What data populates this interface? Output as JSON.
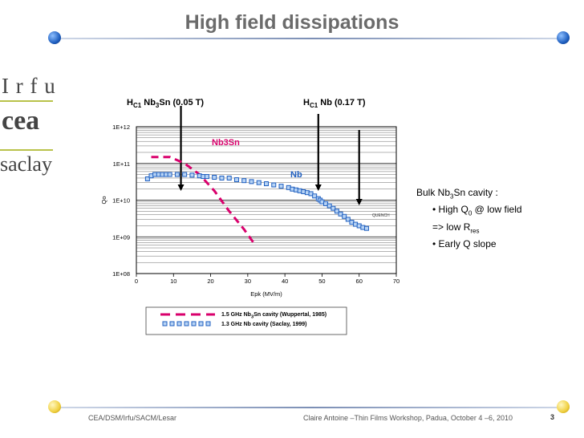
{
  "slide": {
    "title": "High field dissipations",
    "page_number": "3",
    "footer_left": "CEA/DSM/Irfu/SACM/Lesar",
    "footer_center": "Claire Antoine –Thin Films Workshop, Padua, October 4 –6, 2010"
  },
  "logos": {
    "irfu": "I r f u",
    "cea": "cea",
    "saclay": "saclay"
  },
  "annotations": {
    "hc1_nb3sn_label": "H",
    "hc1_nb3sn_sub": "C1",
    "hc1_nb3sn_text": "Nb",
    "hc1_nb3sn_sub2": "3",
    "hc1_nb3sn_rest": "Sn (0.05 T)",
    "hc1_nb_label": "H",
    "hc1_nb_sub": "C1",
    "hc1_nb_rest": "Nb (0.17 T)"
  },
  "bulk_note": {
    "heading_pre": "Bulk Nb",
    "heading_sub": "3",
    "heading_post": "Sn cavity :",
    "line1_pre": "• High Q",
    "line1_sub": "0",
    "line1_post": " @ low field",
    "line2_pre": "=> low R",
    "line2_sub": "res",
    "line3": "•  Early Q slope"
  },
  "colors": {
    "nb3sn": "#d9006c",
    "nb": "#1f5fc0",
    "title": "#6b6b6b"
  },
  "chart_data": {
    "type": "scatter",
    "title": "",
    "xlabel": "Epk (MV/m)",
    "ylabel": "Qo",
    "xlim": [
      0,
      70
    ],
    "ylim_log10": [
      8,
      12
    ],
    "x_ticks": [
      0,
      10,
      20,
      30,
      40,
      50,
      60,
      70
    ],
    "y_tick_labels": [
      "1E+08",
      "1E+09",
      "1E+10",
      "1E+11",
      "1E+12"
    ],
    "in_plot_labels": {
      "nb3sn": "Nb3Sn",
      "nb": "Nb",
      "quench": "QUENCH"
    },
    "legend": [
      {
        "name_pre": "1.5 GHz Nb",
        "name_sub": "3",
        "name_post": "Sn cavity (Wuppertal, 1985)",
        "style": "dashed",
        "color": "#d9006c"
      },
      {
        "name_pre": "1.3 GHz Nb cavity (Saclay, 1999)",
        "name_sub": "",
        "name_post": "",
        "style": "markers",
        "color": "#1f5fc0"
      }
    ],
    "hc1_lines": [
      {
        "name": "HC1 Nb3Sn",
        "epk": 12
      },
      {
        "name": "HC1 Nb",
        "epk": 49
      },
      {
        "name": "Quench",
        "epk": 60
      }
    ],
    "series": [
      {
        "name": "1.5 GHz Nb3Sn cavity (Wuppertal, 1985)",
        "style": "dashed",
        "x": [
          4,
          9,
          13,
          17,
          21,
          25,
          29,
          32
        ],
        "y": [
          150000000000.0,
          150000000000.0,
          100000000000.0,
          50000000000.0,
          18000000000.0,
          5000000000.0,
          1600000000.0,
          600000000.0
        ]
      },
      {
        "name": "1.3 GHz Nb cavity (Saclay, 1999)",
        "style": "markers",
        "x": [
          3,
          4,
          5,
          6,
          7,
          8,
          9,
          11,
          13,
          15,
          17,
          18,
          19,
          21,
          23,
          25,
          27,
          29,
          31,
          33,
          35,
          37,
          39,
          41,
          42,
          43,
          44,
          45,
          46,
          47,
          48,
          49,
          49.5,
          50,
          51,
          52,
          53,
          54,
          55,
          56,
          57,
          58,
          59,
          60,
          61,
          62
        ],
        "y": [
          38000000000.0,
          46000000000.0,
          50000000000.0,
          50000000000.0,
          50000000000.0,
          50000000000.0,
          50000000000.0,
          50000000000.0,
          50000000000.0,
          48000000000.0,
          46000000000.0,
          44000000000.0,
          44000000000.0,
          42000000000.0,
          40000000000.0,
          40000000000.0,
          36000000000.0,
          34000000000.0,
          32000000000.0,
          30000000000.0,
          28000000000.0,
          26000000000.0,
          24000000000.0,
          22000000000.0,
          20000000000.0,
          19000000000.0,
          18000000000.0,
          17000000000.0,
          16000000000.0,
          15000000000.0,
          13000000000.0,
          11000000000.0,
          10000000000.0,
          9000000000.0,
          8000000000.0,
          7000000000.0,
          6000000000.0,
          5000000000.0,
          4200000000.0,
          3600000000.0,
          3000000000.0,
          2500000000.0,
          2200000000.0,
          2000000000.0,
          1800000000.0,
          1700000000.0
        ]
      }
    ]
  }
}
